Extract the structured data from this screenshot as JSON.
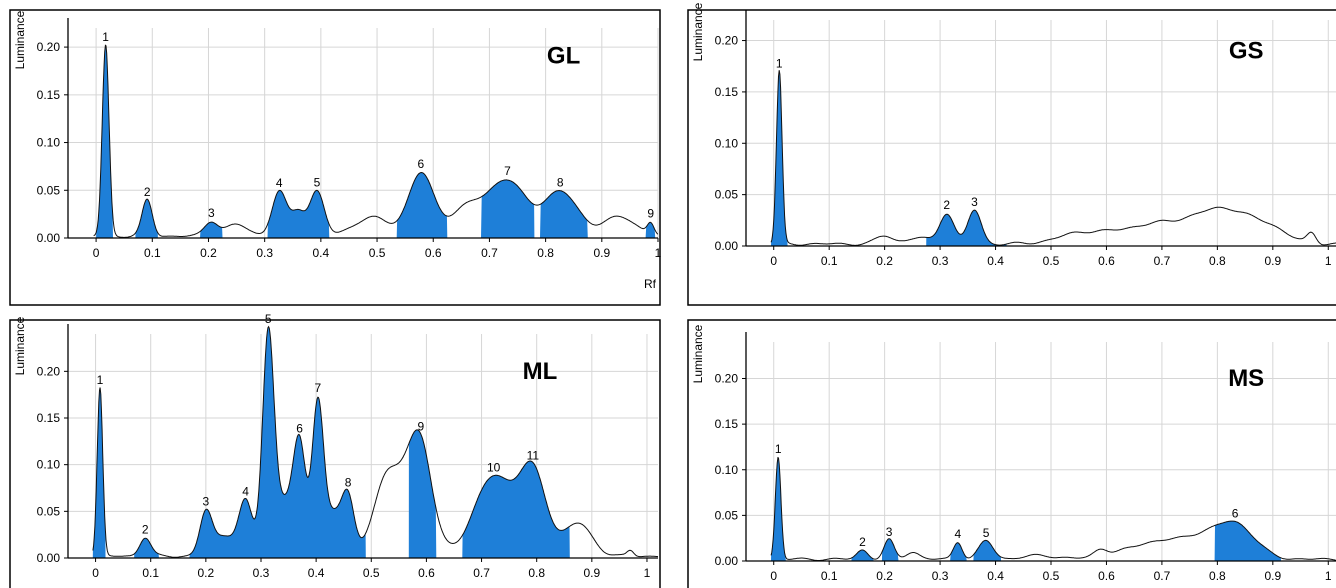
{
  "colors": {
    "peak_fill": "#1e7fd8",
    "trace": "#111111",
    "grid": "#d6d6d6"
  },
  "chart_data": [
    {
      "id": "GL",
      "type": "area",
      "title": "GL",
      "ylabel": "Luminance",
      "xlabel": "Rf",
      "xlim": [
        -0.05,
        1.0
      ],
      "ylim": [
        0,
        0.22
      ],
      "x_ticks": [
        "0",
        "0.1",
        "0.2",
        "0.3",
        "0.4",
        "0.5",
        "0.6",
        "0.7",
        "0.8",
        "0.9",
        "1"
      ],
      "y_ticks": [
        "0.00",
        "0.05",
        "0.10",
        "0.15",
        "0.20"
      ],
      "grid": true,
      "baseline": 0.002,
      "peaks": [
        {
          "label": "1",
          "x": 0.017,
          "y": 0.2,
          "w": 0.006
        },
        {
          "label": "2",
          "x": 0.091,
          "y": 0.038,
          "w": 0.009
        },
        {
          "label": "3",
          "x": 0.205,
          "y": 0.015,
          "w": 0.012
        },
        {
          "label": "4",
          "x": 0.326,
          "y": 0.047,
          "w": 0.013
        },
        {
          "label": "5",
          "x": 0.393,
          "y": 0.047,
          "w": 0.013
        },
        {
          "label": "6",
          "x": 0.578,
          "y": 0.066,
          "w": 0.022
        },
        {
          "label": "7",
          "x": 0.732,
          "y": 0.058,
          "w": 0.032
        },
        {
          "label": "8",
          "x": 0.826,
          "y": 0.047,
          "w": 0.03
        },
        {
          "label": "9",
          "x": 0.987,
          "y": 0.012,
          "w": 0.006
        }
      ],
      "bumps": [
        {
          "x": 0.25,
          "y": 0.012,
          "w": 0.02
        },
        {
          "x": 0.36,
          "y": 0.025,
          "w": 0.012
        },
        {
          "x": 0.49,
          "y": 0.02,
          "w": 0.03
        },
        {
          "x": 0.66,
          "y": 0.03,
          "w": 0.03
        },
        {
          "x": 0.93,
          "y": 0.02,
          "w": 0.03
        }
      ],
      "filled": [
        [
          0.0,
          0.03
        ],
        [
          0.07,
          0.11
        ],
        [
          0.185,
          0.225
        ],
        [
          0.305,
          0.415
        ],
        [
          0.535,
          0.625
        ],
        [
          0.685,
          0.78
        ],
        [
          0.79,
          0.875
        ],
        [
          0.978,
          0.995
        ]
      ]
    },
    {
      "id": "GS",
      "type": "area",
      "title": "GS",
      "ylabel": "Luminance",
      "xlabel": "Rf",
      "xlim": [
        -0.05,
        1.05
      ],
      "ylim": [
        0,
        0.22
      ],
      "x_ticks": [
        "0",
        "0.1",
        "0.2",
        "0.3",
        "0.4",
        "0.5",
        "0.6",
        "0.7",
        "0.8",
        "0.9",
        "1"
      ],
      "y_ticks": [
        "0.00",
        "0.05",
        "0.10",
        "0.15",
        "0.20"
      ],
      "grid": true,
      "baseline": 0.002,
      "peaks": [
        {
          "label": "1",
          "x": 0.01,
          "y": 0.168,
          "w": 0.005
        },
        {
          "label": "2",
          "x": 0.312,
          "y": 0.03,
          "w": 0.013
        },
        {
          "label": "3",
          "x": 0.362,
          "y": 0.033,
          "w": 0.012
        }
      ],
      "bumps": [
        {
          "x": 0.2,
          "y": 0.008,
          "w": 0.015
        },
        {
          "x": 0.26,
          "y": 0.006,
          "w": 0.02
        },
        {
          "x": 0.55,
          "y": 0.008,
          "w": 0.04
        },
        {
          "x": 0.7,
          "y": 0.02,
          "w": 0.08
        },
        {
          "x": 0.82,
          "y": 0.028,
          "w": 0.05
        },
        {
          "x": 0.9,
          "y": 0.01,
          "w": 0.03
        },
        {
          "x": 0.97,
          "y": 0.01,
          "w": 0.008
        }
      ],
      "filled": [
        [
          -0.005,
          0.025
        ],
        [
          0.275,
          0.42
        ]
      ]
    },
    {
      "id": "ML",
      "type": "area",
      "title": "ML",
      "ylabel": "Luminance",
      "xlabel": "",
      "xlim": [
        -0.05,
        1.02
      ],
      "ylim": [
        0,
        0.24
      ],
      "x_ticks": [
        "0",
        "0.1",
        "0.2",
        "0.3",
        "0.4",
        "0.5",
        "0.6",
        "0.7",
        "0.8",
        "0.9",
        "1"
      ],
      "y_ticks": [
        "0.00",
        "0.05",
        "0.10",
        "0.15",
        "0.20"
      ],
      "grid": true,
      "baseline": 0.002,
      "peaks": [
        {
          "label": "1",
          "x": 0.008,
          "y": 0.18,
          "w": 0.005
        },
        {
          "label": "2",
          "x": 0.09,
          "y": 0.02,
          "w": 0.01
        },
        {
          "label": "3",
          "x": 0.2,
          "y": 0.045,
          "w": 0.011
        },
        {
          "label": "4",
          "x": 0.272,
          "y": 0.055,
          "w": 0.012
        },
        {
          "label": "5",
          "x": 0.313,
          "y": 0.212,
          "w": 0.01
        },
        {
          "label": "6",
          "x": 0.37,
          "y": 0.098,
          "w": 0.011
        },
        {
          "label": "7",
          "x": 0.403,
          "y": 0.15,
          "w": 0.01
        },
        {
          "label": "8",
          "x": 0.458,
          "y": 0.052,
          "w": 0.011
        },
        {
          "label": "9",
          "x": 0.59,
          "y": 0.075,
          "w": 0.02
        },
        {
          "label": "10",
          "x": 0.722,
          "y": 0.085,
          "w": 0.035
        },
        {
          "label": "11",
          "x": 0.793,
          "y": 0.088,
          "w": 0.025
        }
      ],
      "bumps": [
        {
          "x": 0.235,
          "y": 0.022,
          "w": 0.02
        },
        {
          "x": 0.34,
          "y": 0.06,
          "w": 0.025
        },
        {
          "x": 0.43,
          "y": 0.045,
          "w": 0.02
        },
        {
          "x": 0.56,
          "y": 0.08,
          "w": 0.035
        },
        {
          "x": 0.52,
          "y": 0.04,
          "w": 0.02
        },
        {
          "x": 0.875,
          "y": 0.035,
          "w": 0.025
        },
        {
          "x": 0.97,
          "y": 0.006,
          "w": 0.006
        }
      ],
      "filled": [
        [
          -0.005,
          0.018
        ],
        [
          0.07,
          0.115
        ],
        [
          0.17,
          0.49
        ],
        [
          0.568,
          0.618
        ],
        [
          0.665,
          0.86
        ]
      ]
    },
    {
      "id": "MS",
      "type": "area",
      "title": "MS",
      "ylabel": "Luminance",
      "xlabel": "",
      "xlim": [
        -0.05,
        1.05
      ],
      "ylim": [
        0,
        0.24
      ],
      "x_ticks": [
        "0",
        "0.1",
        "0.2",
        "0.3",
        "0.4",
        "0.5",
        "0.6",
        "0.7",
        "0.8",
        "0.9",
        "1"
      ],
      "y_ticks": [
        "0.00",
        "0.05",
        "0.10",
        "0.15",
        "0.20"
      ],
      "grid": true,
      "baseline": 0.002,
      "peaks": [
        {
          "label": "1",
          "x": 0.008,
          "y": 0.112,
          "w": 0.005
        },
        {
          "label": "2",
          "x": 0.16,
          "y": 0.01,
          "w": 0.01
        },
        {
          "label": "3",
          "x": 0.208,
          "y": 0.021,
          "w": 0.009
        },
        {
          "label": "4",
          "x": 0.332,
          "y": 0.019,
          "w": 0.008
        },
        {
          "label": "5",
          "x": 0.383,
          "y": 0.02,
          "w": 0.013
        },
        {
          "label": "6",
          "x": 0.832,
          "y": 0.038,
          "w": 0.035
        }
      ],
      "bumps": [
        {
          "x": 0.25,
          "y": 0.008,
          "w": 0.012
        },
        {
          "x": 0.48,
          "y": 0.004,
          "w": 0.03
        },
        {
          "x": 0.59,
          "y": 0.008,
          "w": 0.012
        },
        {
          "x": 0.7,
          "y": 0.02,
          "w": 0.06
        },
        {
          "x": 0.77,
          "y": 0.012,
          "w": 0.03
        }
      ],
      "filled": [
        [
          -0.005,
          0.022
        ],
        [
          0.14,
          0.18
        ],
        [
          0.195,
          0.225
        ],
        [
          0.318,
          0.348
        ],
        [
          0.36,
          0.41
        ],
        [
          0.795,
          0.915
        ]
      ]
    }
  ]
}
